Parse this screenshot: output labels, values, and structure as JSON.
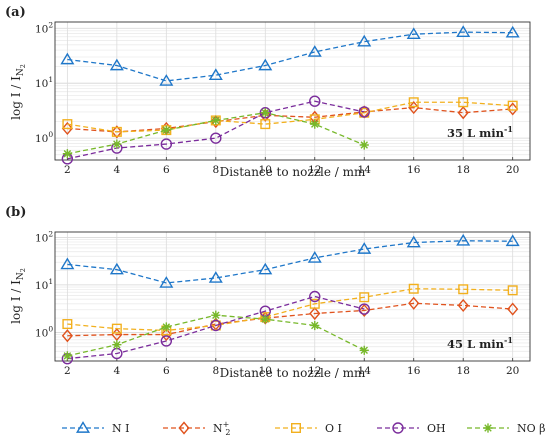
{
  "chart_data": [
    {
      "type": "line",
      "panel_label": "(a)",
      "annotation": {
        "value": "35",
        "unit": "L min",
        "exponent": "-1"
      },
      "xlabel": "Distance to nozzle / mm",
      "ylabel": {
        "main": "log I / I",
        "sub": "N",
        "subsub": "2"
      },
      "yscale": "log",
      "xlim": [
        1.5,
        20.7
      ],
      "ylim": [
        0.4,
        130
      ],
      "xticks": [
        2,
        4,
        6,
        8,
        10,
        12,
        14,
        16,
        18,
        20
      ],
      "ytick_labels": [
        {
          "value": 1,
          "base": "10",
          "exp": "0"
        },
        {
          "value": 10,
          "base": "10",
          "exp": "1"
        },
        {
          "value": 100,
          "base": "10",
          "exp": "2"
        }
      ],
      "grid": true,
      "series": [
        {
          "name_key": "NI",
          "x": [
            2,
            4,
            6,
            8,
            10,
            12,
            14,
            16,
            18,
            20
          ],
          "y": [
            27,
            21,
            11,
            14,
            21,
            37,
            57,
            78,
            85,
            83
          ]
        },
        {
          "name_key": "N2P",
          "x": [
            2,
            4,
            6,
            8,
            10,
            12,
            14,
            16,
            18,
            20
          ],
          "y": [
            1.5,
            1.3,
            1.5,
            2.0,
            2.6,
            2.4,
            3.0,
            3.6,
            2.9,
            3.4
          ]
        },
        {
          "name_key": "OI",
          "x": [
            2,
            4,
            6,
            8,
            10,
            12,
            14,
            16,
            18,
            20
          ],
          "y": [
            1.8,
            1.3,
            1.4,
            2.1,
            1.8,
            2.2,
            2.9,
            4.5,
            4.5,
            3.9
          ]
        },
        {
          "name_key": "OH",
          "x": [
            2,
            4,
            6,
            8,
            10,
            12,
            14
          ],
          "y": [
            0.42,
            0.66,
            0.78,
            1.0,
            2.9,
            4.7,
            3.0
          ]
        },
        {
          "name_key": "NOB",
          "x": [
            2,
            4,
            6,
            8,
            10,
            12,
            14
          ],
          "y": [
            0.52,
            0.78,
            1.4,
            2.1,
            2.9,
            1.8,
            0.75
          ]
        }
      ]
    },
    {
      "type": "line",
      "panel_label": "(b)",
      "annotation": {
        "value": "45",
        "unit": "L min",
        "exponent": "-1"
      },
      "xlabel": "Distance to nozzle / mm",
      "ylabel": {
        "main": "log I / I",
        "sub": "N",
        "subsub": "2"
      },
      "yscale": "log",
      "xlim": [
        1.5,
        20.7
      ],
      "ylim": [
        0.25,
        130
      ],
      "xticks": [
        2,
        4,
        6,
        8,
        10,
        12,
        14,
        16,
        18,
        20
      ],
      "ytick_labels": [
        {
          "value": 1,
          "base": "10",
          "exp": "0"
        },
        {
          "value": 10,
          "base": "10",
          "exp": "1"
        },
        {
          "value": 100,
          "base": "10",
          "exp": "2"
        }
      ],
      "grid": true,
      "series": [
        {
          "name_key": "NI",
          "x": [
            2,
            4,
            6,
            8,
            10,
            12,
            14,
            16,
            18,
            20
          ],
          "y": [
            27,
            21,
            11,
            14,
            21,
            37,
            57,
            78,
            85,
            83
          ]
        },
        {
          "name_key": "N2P",
          "x": [
            2,
            4,
            6,
            8,
            10,
            12,
            14,
            16,
            18,
            20
          ],
          "y": [
            0.85,
            0.9,
            0.9,
            1.5,
            2.0,
            2.5,
            2.9,
            4.1,
            3.7,
            3.1
          ]
        },
        {
          "name_key": "OI",
          "x": [
            2,
            4,
            6,
            8,
            10,
            12,
            14,
            16,
            18,
            20
          ],
          "y": [
            1.5,
            1.2,
            1.1,
            1.4,
            2.1,
            4.0,
            5.5,
            8.3,
            8.1,
            7.7
          ]
        },
        {
          "name_key": "OH",
          "x": [
            2,
            4,
            6,
            8,
            10,
            12,
            14
          ],
          "y": [
            0.28,
            0.36,
            0.66,
            1.4,
            2.8,
            5.7,
            3.1
          ]
        },
        {
          "name_key": "NOB",
          "x": [
            2,
            4,
            6,
            8,
            10,
            12,
            14
          ],
          "y": [
            0.32,
            0.55,
            1.3,
            2.3,
            1.9,
            1.4,
            0.42
          ]
        }
      ]
    }
  ],
  "legend": {
    "placement": "bottom",
    "entries": [
      {
        "key": "NI",
        "label": "N I",
        "color": "#1f77c9",
        "marker": "triangle"
      },
      {
        "key": "N2P",
        "label": "N",
        "sub": "2",
        "sup": "+",
        "color": "#e0531e",
        "marker": "diamond"
      },
      {
        "key": "OI",
        "label": "O I",
        "color": "#f2b01e",
        "marker": "square"
      },
      {
        "key": "OH",
        "label": "OH",
        "color": "#7b2d9c",
        "marker": "circle"
      },
      {
        "key": "NOB",
        "label": "NO β",
        "color": "#77b82a",
        "marker": "star"
      }
    ]
  }
}
